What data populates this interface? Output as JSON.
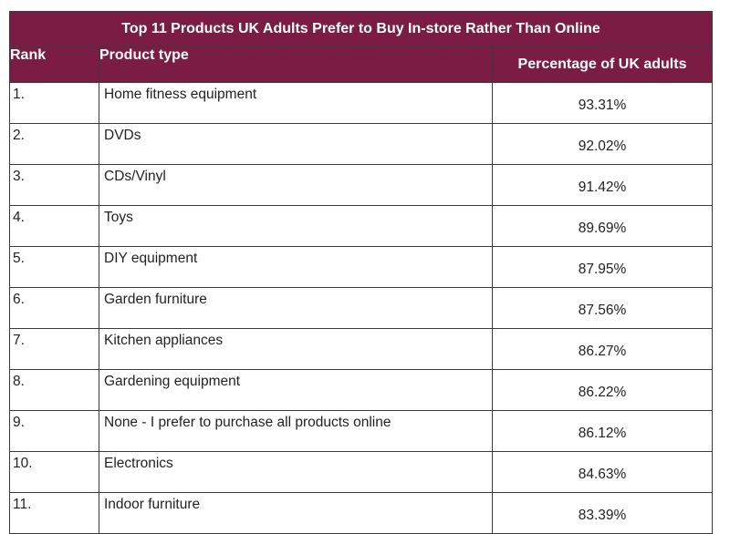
{
  "chart_data": {
    "type": "table",
    "title": "Top 11 Products UK Adults Prefer to Buy In-store Rather Than Online",
    "columns": [
      "Rank",
      "Product type",
      "Percentage of UK adults"
    ],
    "rows": [
      {
        "rank": "1.",
        "product": "Home fitness equipment",
        "percentage": "93.31%"
      },
      {
        "rank": "2.",
        "product": "DVDs",
        "percentage": "92.02%"
      },
      {
        "rank": "3.",
        "product": "CDs/Vinyl",
        "percentage": "91.42%"
      },
      {
        "rank": "4.",
        "product": "Toys",
        "percentage": "89.69%"
      },
      {
        "rank": "5.",
        "product": "DIY equipment",
        "percentage": "87.95%"
      },
      {
        "rank": "6.",
        "product": "Garden furniture",
        "percentage": "87.56%"
      },
      {
        "rank": "7.",
        "product": "Kitchen appliances",
        "percentage": "86.27%"
      },
      {
        "rank": "8.",
        "product": "Gardening equipment",
        "percentage": "86.22%"
      },
      {
        "rank": "9.",
        "product": "None - I prefer to purchase all products online",
        "percentage": "86.12%"
      },
      {
        "rank": "10.",
        "product": "Electronics",
        "percentage": "84.63%"
      },
      {
        "rank": "11.",
        "product": "Indoor furniture",
        "percentage": "83.39%"
      }
    ]
  },
  "colors": {
    "header_background": "#7b1c45",
    "header_text": "#ffffff",
    "border": "#3a3a3a"
  }
}
